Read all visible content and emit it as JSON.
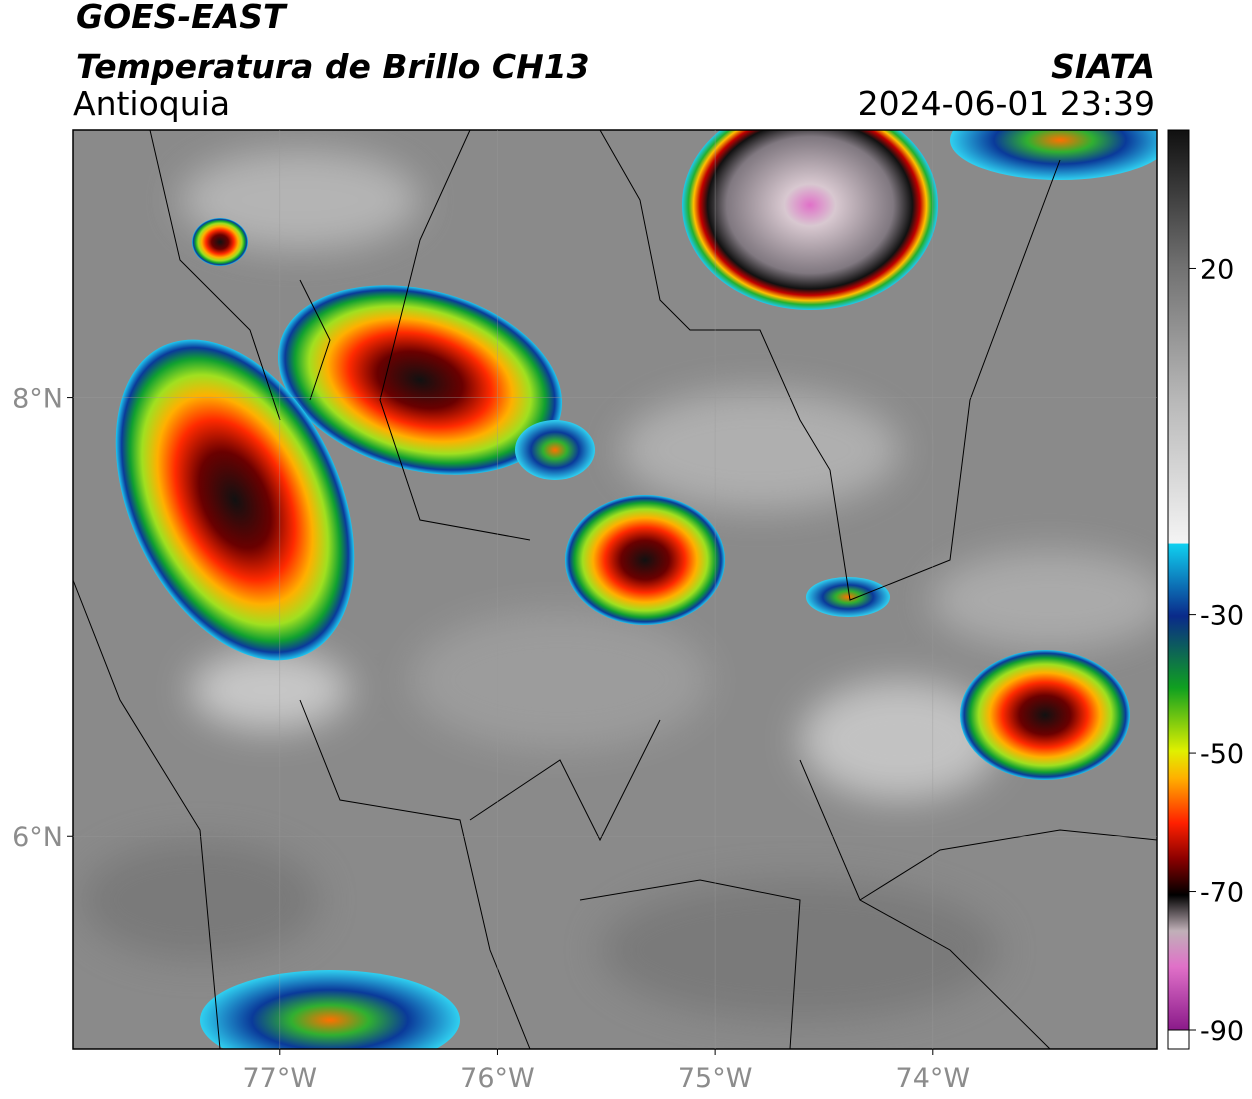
{
  "header": {
    "title": "GOES-EAST",
    "subtitle": "Temperatura de Brillo CH13",
    "region": "Antioquia",
    "source": "SIATA",
    "timestamp": "2024-06-01 23:39"
  },
  "map": {
    "xlim": [
      -77.95,
      -72.97
    ],
    "ylim": [
      5.03,
      9.22
    ],
    "xticks": [
      {
        "value": -77,
        "label": "77°W"
      },
      {
        "value": -76,
        "label": "76°W"
      },
      {
        "value": -75,
        "label": "75°W"
      },
      {
        "value": -74,
        "label": "74°W"
      }
    ],
    "yticks": [
      {
        "value": 6,
        "label": "6°N"
      },
      {
        "value": 8,
        "label": "8°N"
      }
    ]
  },
  "colorbar": {
    "lim": [
      -90,
      40
    ],
    "ticks": [
      20,
      -30,
      -50,
      -70,
      -90
    ]
  }
}
